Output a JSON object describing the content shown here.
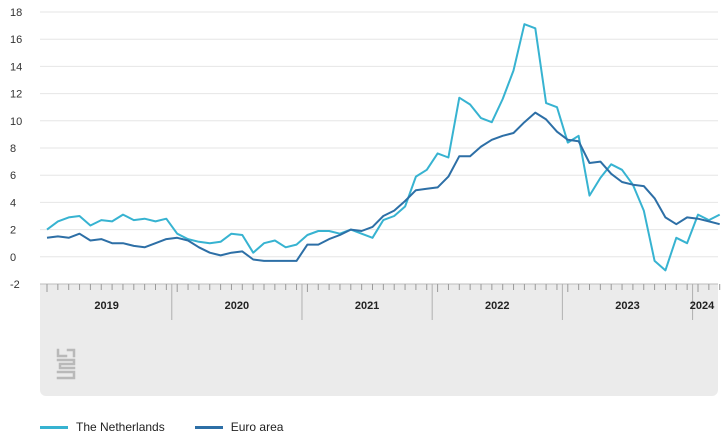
{
  "colors": {
    "netherlands": "#37b3d1",
    "euro": "#2d6fa6",
    "grid": "#e6e6e6",
    "axis_band": "#ebebeb"
  },
  "legend": {
    "netherlands": "The Netherlands",
    "euro": "Euro area"
  },
  "chart_data": {
    "type": "line",
    "ylim": [
      -2,
      18
    ],
    "yticks": [
      -2,
      0,
      2,
      4,
      6,
      8,
      10,
      12,
      14,
      16,
      18
    ],
    "x_start": "2019-01",
    "year_labels": [
      "2019",
      "2020",
      "2021",
      "2022",
      "2023",
      "2024"
    ],
    "grid": true,
    "legend_position": "bottom-left",
    "series": [
      {
        "name": "The Netherlands",
        "values": [
          2.0,
          2.6,
          2.9,
          3.0,
          2.3,
          2.7,
          2.6,
          3.1,
          2.7,
          2.8,
          2.6,
          2.8,
          1.7,
          1.3,
          1.1,
          1.0,
          1.1,
          1.7,
          1.6,
          0.3,
          1.0,
          1.2,
          0.7,
          0.9,
          1.6,
          1.9,
          1.9,
          1.7,
          2.0,
          1.7,
          1.4,
          2.7,
          3.0,
          3.7,
          5.9,
          6.4,
          7.6,
          7.3,
          11.7,
          11.2,
          10.2,
          9.9,
          11.6,
          13.7,
          17.1,
          16.8,
          11.3,
          11.0,
          8.4,
          8.9,
          4.5,
          5.8,
          6.8,
          6.4,
          5.3,
          3.4,
          -0.3,
          -1.0,
          1.4,
          1.0,
          3.1,
          2.7,
          3.1
        ]
      },
      {
        "name": "Euro area",
        "values": [
          1.4,
          1.5,
          1.4,
          1.7,
          1.2,
          1.3,
          1.0,
          1.0,
          0.8,
          0.7,
          1.0,
          1.3,
          1.4,
          1.2,
          0.7,
          0.3,
          0.1,
          0.3,
          0.4,
          -0.2,
          -0.3,
          -0.3,
          -0.3,
          -0.3,
          0.9,
          0.9,
          1.3,
          1.6,
          2.0,
          1.9,
          2.2,
          3.0,
          3.4,
          4.1,
          4.9,
          5.0,
          5.1,
          5.9,
          7.4,
          7.4,
          8.1,
          8.6,
          8.9,
          9.1,
          9.9,
          10.6,
          10.1,
          9.2,
          8.6,
          8.5,
          6.9,
          7.0,
          6.1,
          5.5,
          5.3,
          5.2,
          4.3,
          2.9,
          2.4,
          2.9,
          2.8,
          2.6,
          2.4
        ]
      }
    ]
  }
}
